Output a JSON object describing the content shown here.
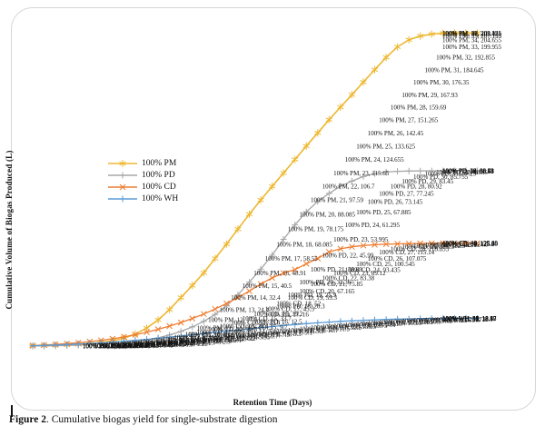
{
  "figure": {
    "caption_label": "Figure 2",
    "caption_text": ". Cumulative biogas yield for single-substrate digestion"
  },
  "chart_data": {
    "type": "line",
    "title": "",
    "xlabel": "Retention Time (Days)",
    "ylabel": "Cumulative Volume of Biogas Produced (L)",
    "x_label_meaning": "retention time in days",
    "x": [
      1,
      2,
      3,
      4,
      5,
      6,
      7,
      8,
      9,
      10,
      11,
      12,
      13,
      14,
      15,
      16,
      17,
      18,
      19,
      20,
      21,
      22,
      23,
      24,
      25,
      26,
      27,
      28,
      29,
      30,
      31,
      32,
      33,
      34,
      35,
      36,
      37,
      38,
      39,
      40
    ],
    "grid": false,
    "axis_tick_labels_visible": false,
    "legend_position": "middle-left",
    "point_label_format": "{series}, {day}, {value}",
    "series": [
      {
        "name": "100% PM",
        "color": "#EDB730",
        "marker": "star6",
        "ymax_hint": 210,
        "values": [
          0.1,
          0.25,
          0.45,
          0.7,
          1.05,
          1.55,
          2.3,
          3.5,
          5.3,
          8.0,
          12.0,
          17.5,
          24.4,
          32.4,
          40.5,
          48.91,
          58.55,
          68.085,
          78.175,
          88.085,
          97.59,
          106.7,
          115.65,
          124.655,
          133.625,
          142.45,
          151.265,
          159.69,
          167.93,
          176.35,
          184.645,
          192.855,
          199.955,
          204.655,
          207.155,
          208.455,
          209.055,
          209.125,
          209.125,
          209.125
        ]
      },
      {
        "name": "100% PD",
        "color": "#A6A6A6",
        "marker": "plus",
        "ymax_hint": 159,
        "values": [
          0.05,
          0.1,
          0.2,
          0.3,
          0.45,
          0.65,
          0.9,
          1.25,
          1.7,
          2.3,
          3.1,
          4.2,
          5.6,
          7.4,
          9.7,
          12.5,
          16.0,
          20.3,
          25.9,
          32.36,
          38.89,
          45.99,
          53.995,
          61.295,
          67.885,
          73.145,
          77.245,
          80.92,
          83.45,
          85.755,
          87.25,
          88.05,
          88.4,
          88.55,
          88.63,
          88.68,
          88.71,
          88.72,
          88.73,
          88.74
        ]
      },
      {
        "name": "100% CD",
        "color": "#ED7D31",
        "marker": "x",
        "ymax_hint": 384,
        "values": [
          0.6,
          1.3,
          2.1,
          3.0,
          4.1,
          5.4,
          7.0,
          8.9,
          11.2,
          13.9,
          17.0,
          20.5,
          24.4,
          28.8,
          33.7,
          39.2,
          45.3,
          52.0,
          59.3,
          67.165,
          75.85,
          83.38,
          89.12,
          93.435,
          100.545,
          107.075,
          115.14,
          118.855,
          121.3,
          122.9,
          123.9,
          124.5,
          124.9,
          125.2,
          125.4,
          125.5,
          125.58,
          125.63,
          125.66,
          125.69
        ]
      },
      {
        "name": "100% WH",
        "color": "#5B9BD5",
        "marker": "plus",
        "ymax_hint": 210,
        "values": [
          0.2,
          0.45,
          0.7,
          1.0,
          1.35,
          1.75,
          2.2,
          2.7,
          3.25,
          3.85,
          4.5,
          5.2,
          5.95,
          6.7,
          7.5,
          8.3,
          9.1,
          9.9,
          10.7,
          11.5,
          12.3,
          13.05,
          13.75,
          14.4,
          15.0,
          15.55,
          16.05,
          16.5,
          16.9,
          17.25,
          17.55,
          17.8,
          18.0,
          18.17,
          18.3,
          18.4,
          18.47,
          18.52,
          18.56,
          18.6
        ]
      }
    ],
    "readable_labeled_points": {
      "100% PM": {
        "16": 48.91,
        "17": 58.55,
        "18": 68.085,
        "19": 78.175,
        "20": 88.085,
        "21": 97.59,
        "22": 106.7,
        "23": 115.65,
        "24": 124.655,
        "25": 133.625,
        "26": 142.45,
        "27": 151.265,
        "28": 159.69,
        "29": 167.93,
        "30": 176.35,
        "31": 184.645,
        "32": 192.855,
        "33": 199.955
      },
      "100% PD": {
        "20": 32.36,
        "21": 38.89,
        "22": 45.99,
        "23": 53.995,
        "24": 61.295,
        "25": 67.885,
        "26": 73.145,
        "27": 77.245,
        "28": 80.92,
        "29": 83.45,
        "30": 85.755
      },
      "100% CD": {
        "20": 67.165,
        "21": 75.85,
        "22": 83.38,
        "23": 89.12,
        "24": 93.435,
        "25": 100.545,
        "26": 107.075,
        "27": 115.14,
        "28": 118.855
      }
    }
  }
}
